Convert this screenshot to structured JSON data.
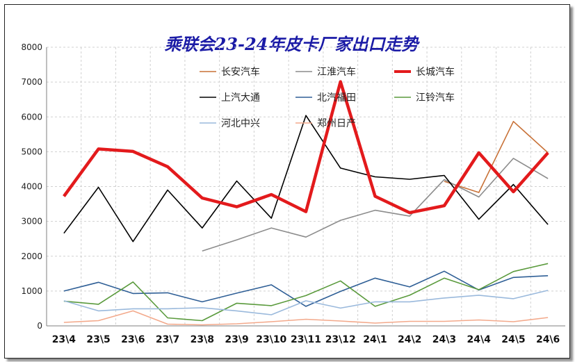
{
  "chart_data": {
    "type": "line",
    "title": "乘联会23-24年皮卡厂家出口走势",
    "xlabel": "",
    "ylabel": "",
    "ylim": [
      0,
      8000
    ],
    "yticks": [
      0,
      1000,
      2000,
      3000,
      4000,
      5000,
      6000,
      7000,
      8000
    ],
    "grid": true,
    "legend_position": "top-center",
    "categories": [
      "23\\4",
      "23\\5",
      "23\\6",
      "23\\7",
      "23\\8",
      "23\\9",
      "23\\10",
      "23\\11",
      "23\\12",
      "24\\1",
      "24\\2",
      "24\\3",
      "24\\4",
      "24\\5",
      "24\\6"
    ],
    "series": [
      {
        "name": "长安汽车",
        "color": "#c87137",
        "width": 1.6,
        "values": [
          null,
          null,
          null,
          null,
          null,
          null,
          null,
          null,
          null,
          null,
          null,
          4150,
          3830,
          5870,
          4970
        ]
      },
      {
        "name": "江淮汽车",
        "color": "#8c8c8c",
        "width": 1.6,
        "values": [
          null,
          null,
          null,
          null,
          2150,
          2470,
          2810,
          2550,
          3030,
          3320,
          3150,
          4200,
          3700,
          4810,
          4230
        ]
      },
      {
        "name": "长城汽车",
        "color": "#e31a1c",
        "width": 4.5,
        "values": [
          3720,
          5080,
          5010,
          4570,
          3670,
          3420,
          3770,
          3280,
          7010,
          3720,
          3250,
          3450,
          4970,
          3850,
          4970
        ]
      },
      {
        "name": "上汽大通",
        "color": "#000000",
        "width": 1.6,
        "values": [
          2660,
          3980,
          2420,
          3900,
          2810,
          4160,
          3090,
          6040,
          4530,
          4280,
          4210,
          4320,
          3060,
          4060,
          2910
        ]
      },
      {
        "name": "北汽福田",
        "color": "#2f5f96",
        "width": 1.6,
        "values": [
          1000,
          1250,
          930,
          950,
          690,
          940,
          1180,
          560,
          990,
          1370,
          1120,
          1570,
          1030,
          1390,
          1440
        ]
      },
      {
        "name": "江铃汽车",
        "color": "#5a9a3c",
        "width": 1.6,
        "values": [
          710,
          620,
          1260,
          230,
          150,
          650,
          580,
          870,
          1290,
          560,
          880,
          1370,
          1040,
          1560,
          1790
        ]
      },
      {
        "name": "河北中兴",
        "color": "#9ab9dc",
        "width": 1.6,
        "values": [
          720,
          430,
          490,
          490,
          520,
          430,
          320,
          720,
          510,
          690,
          690,
          800,
          880,
          780,
          1020
        ]
      },
      {
        "name": "郑州日产",
        "color": "#f3a98b",
        "width": 1.6,
        "values": [
          100,
          150,
          430,
          50,
          30,
          60,
          120,
          190,
          140,
          80,
          130,
          130,
          170,
          120,
          240
        ]
      }
    ]
  }
}
